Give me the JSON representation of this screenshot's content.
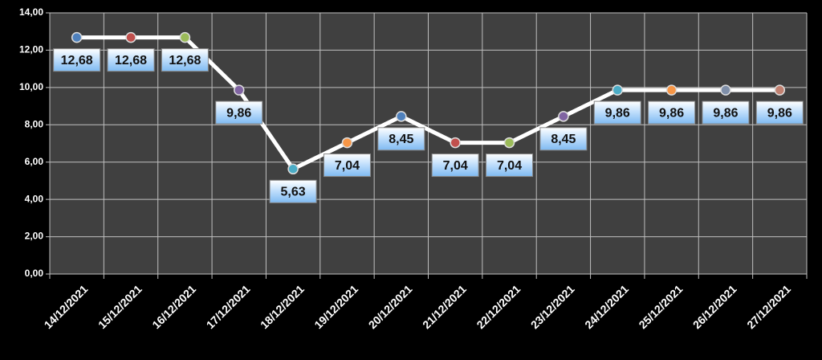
{
  "chart_data": {
    "type": "line",
    "categories": [
      "14/12/2021",
      "15/12/2021",
      "16/12/2021",
      "17/12/2021",
      "18/12/2021",
      "19/12/2021",
      "20/12/2021",
      "21/12/2021",
      "22/12/2021",
      "23/12/2021",
      "24/12/2021",
      "25/12/2021",
      "26/12/2021",
      "27/12/2021"
    ],
    "values": [
      12.68,
      12.68,
      12.68,
      9.86,
      5.63,
      7.04,
      8.45,
      7.04,
      7.04,
      8.45,
      9.86,
      9.86,
      9.86,
      9.86
    ],
    "value_labels": [
      "12,68",
      "12,68",
      "12,68",
      "9,86",
      "5,63",
      "7,04",
      "8,45",
      "7,04",
      "7,04",
      "8,45",
      "9,86",
      "9,86",
      "9,86",
      "9,86"
    ],
    "color": "#ffffff",
    "point_colors": [
      "#4f81bd",
      "#c0504d",
      "#9bbb59",
      "#8064a2",
      "#4bacc6",
      "#f79646",
      "#4f81bd",
      "#c0504d",
      "#9bbb59",
      "#8064a2",
      "#4bacc6",
      "#f79646",
      "#7f8fa9",
      "#c08070"
    ],
    "ylim": [
      0,
      14
    ],
    "yticks": [
      {
        "value": 0,
        "label": "0,00"
      },
      {
        "value": 2,
        "label": "2,00"
      },
      {
        "value": 4,
        "label": "4,00"
      },
      {
        "value": 6,
        "label": "6,00"
      },
      {
        "value": 8,
        "label": "8,00"
      },
      {
        "value": 10,
        "label": "10,00"
      },
      {
        "value": 12,
        "label": "12,00"
      },
      {
        "value": 14,
        "label": "14,00"
      }
    ],
    "grid": true
  }
}
